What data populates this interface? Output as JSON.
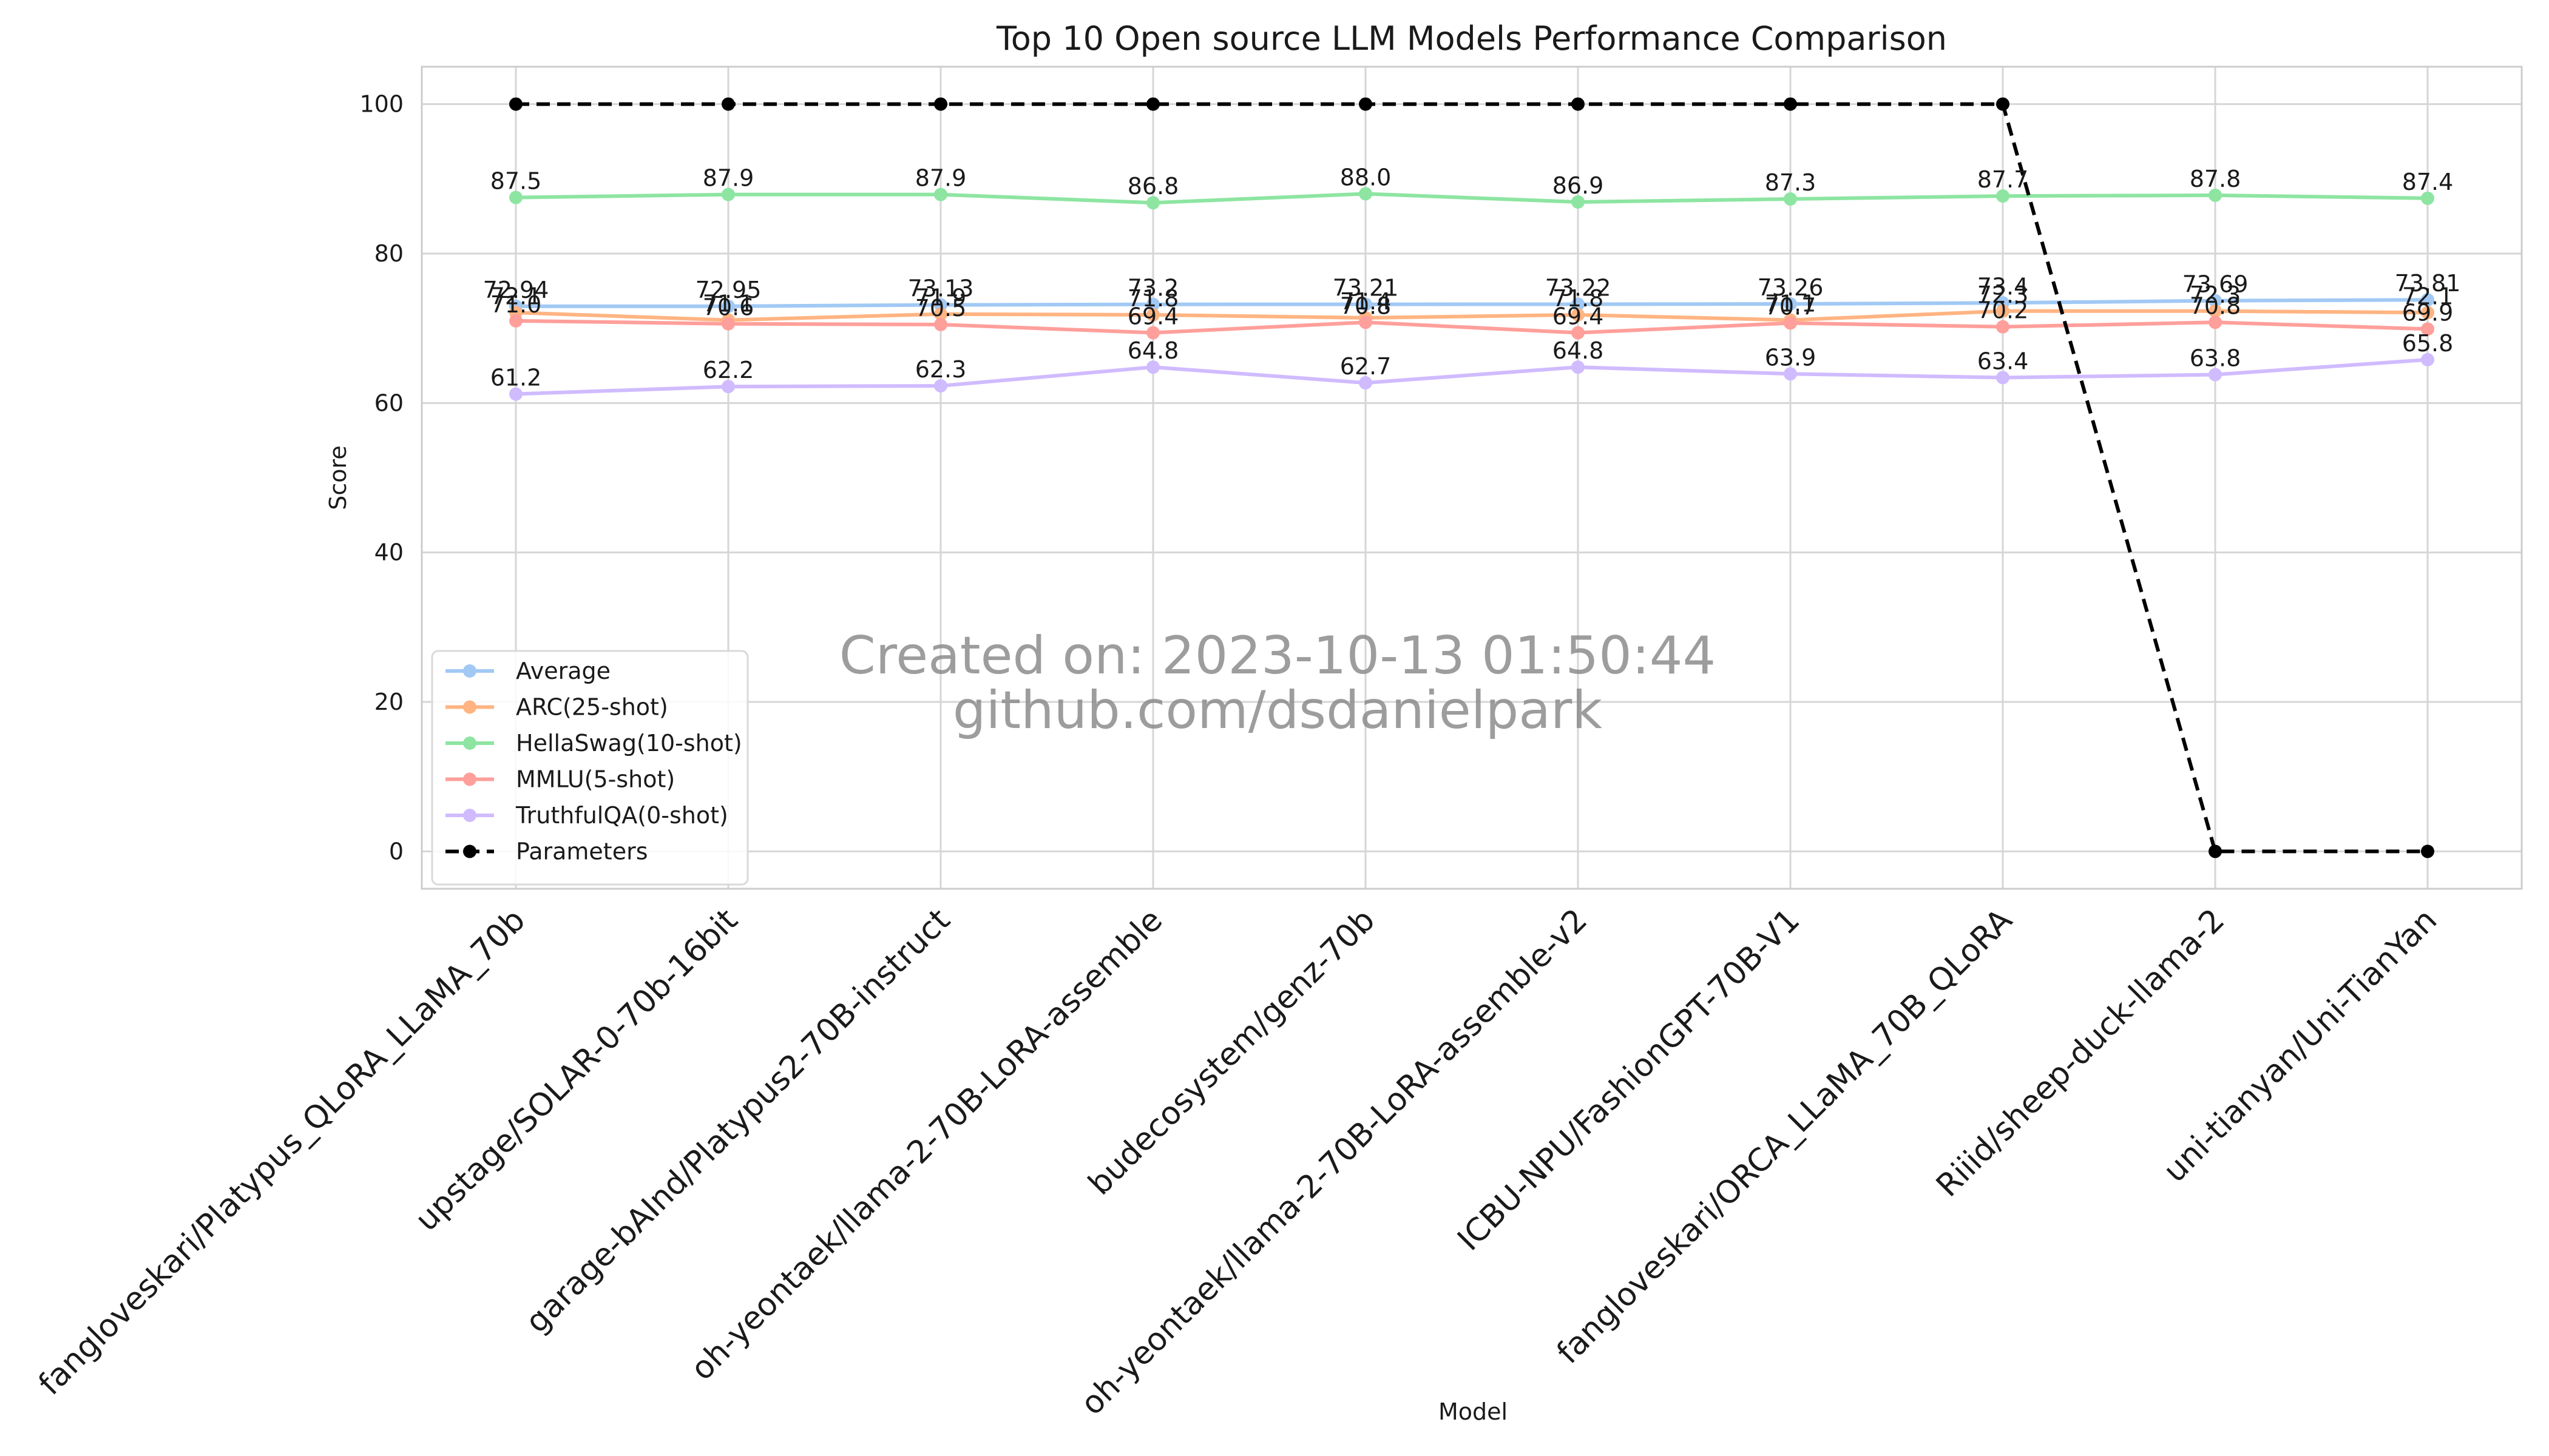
{
  "chart_data": {
    "type": "line",
    "title": "Top 10 Open source LLM Models Performance Comparison",
    "xlabel": "Model",
    "ylabel": "Score",
    "ylim": [
      -5,
      105
    ],
    "yticks": [
      0,
      20,
      40,
      60,
      80,
      100
    ],
    "grid": true,
    "legend_position": "lower-left",
    "watermark": [
      "Created on: 2023-10-13 01:50:44",
      "github.com/dsdanielpark"
    ],
    "categories": [
      "fangloveskari/Platypus_QLoRA_LLaMA_70b",
      "upstage/SOLAR-0-70b-16bit",
      "garage-bAInd/Platypus2-70B-instruct",
      "oh-yeontaek/llama-2-70B-LoRA-assemble",
      "budecosystem/genz-70b",
      "oh-yeontaek/llama-2-70B-LoRA-assemble-v2",
      "ICBU-NPU/FashionGPT-70B-V1",
      "fangloveskari/ORCA_LLaMA_70B_QLoRA",
      "Riiid/sheep-duck-llama-2",
      "uni-tianyan/Uni-TianYan"
    ],
    "series": [
      {
        "name": "Average",
        "color": "#a1c9f4",
        "dashed": false,
        "marker_color": "#a1c9f4",
        "values": [
          72.94,
          72.95,
          73.13,
          73.2,
          73.21,
          73.22,
          73.26,
          73.4,
          73.69,
          73.81
        ],
        "labels": [
          "72.94",
          "72.95",
          "73.13",
          "73.2",
          "73.21",
          "73.22",
          "73.26",
          "73.4",
          "73.69",
          "73.81"
        ]
      },
      {
        "name": "ARC(25-shot)",
        "color": "#ffb482",
        "dashed": false,
        "marker_color": "#ffb482",
        "values": [
          72.1,
          71.1,
          71.9,
          71.8,
          71.4,
          71.8,
          71.1,
          72.3,
          72.3,
          72.1
        ],
        "labels": [
          "72.1",
          "71.1",
          "71.9",
          "71.8",
          "71.4",
          "71.8",
          "71.1",
          "72.3",
          "72.3",
          "72.1"
        ]
      },
      {
        "name": "HellaSwag(10-shot)",
        "color": "#8de5a1",
        "dashed": false,
        "marker_color": "#8de5a1",
        "values": [
          87.5,
          87.9,
          87.9,
          86.8,
          88.0,
          86.9,
          87.3,
          87.7,
          87.8,
          87.4
        ],
        "labels": [
          "87.5",
          "87.9",
          "87.9",
          "86.8",
          "88.0",
          "86.9",
          "87.3",
          "87.7",
          "87.8",
          "87.4"
        ]
      },
      {
        "name": "MMLU(5-shot)",
        "color": "#ff9f9b",
        "dashed": false,
        "marker_color": "#ff9f9b",
        "values": [
          71.0,
          70.6,
          70.5,
          69.4,
          70.8,
          69.4,
          70.7,
          70.2,
          70.8,
          69.9
        ],
        "labels": [
          "71.0",
          "70.6",
          "70.5",
          "69.4",
          "70.8",
          "69.4",
          "70.7",
          "70.2",
          "70.8",
          "69.9"
        ]
      },
      {
        "name": "TruthfulQA(0-shot)",
        "color": "#d0bbff",
        "dashed": false,
        "marker_color": "#d0bbff",
        "values": [
          61.2,
          62.2,
          62.3,
          64.8,
          62.7,
          64.8,
          63.9,
          63.4,
          63.8,
          65.8
        ],
        "labels": [
          "61.2",
          "62.2",
          "62.3",
          "64.8",
          "62.7",
          "64.8",
          "63.9",
          "63.4",
          "63.8",
          "65.8"
        ]
      },
      {
        "name": "Parameters",
        "color": "#000000",
        "dashed": true,
        "marker_color": "#000000",
        "values": [
          100,
          100,
          100,
          100,
          100,
          100,
          100,
          100,
          0,
          0
        ],
        "labels": null
      }
    ]
  }
}
